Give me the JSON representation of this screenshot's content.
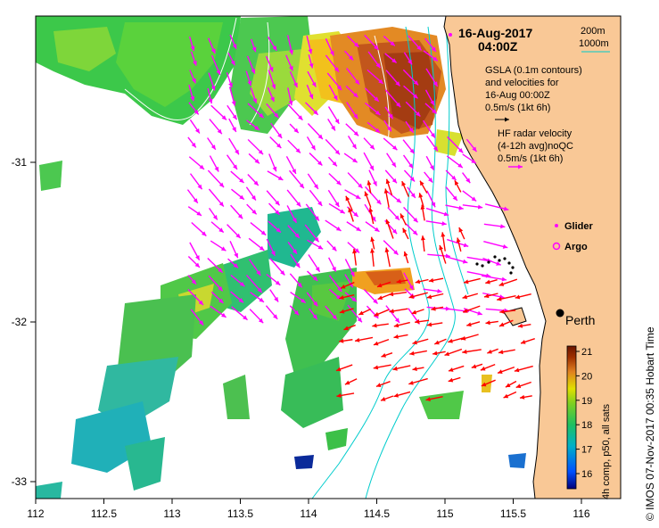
{
  "header": {
    "date": "16-Aug-2017",
    "time": "04:00Z"
  },
  "contours": {
    "label1": "200m",
    "label2": "1000m"
  },
  "gsla": {
    "line1": "GSLA (0.1m contours)",
    "line2": "and velocities for",
    "line3": "16-Aug 00:00Z",
    "scale": "0.5m/s (1kt 6h)"
  },
  "hf": {
    "line1": "HF radar velocity",
    "line2": "(4-12h avg)noQC",
    "scale": "0.5m/s (1kt 6h)"
  },
  "legend": {
    "glider": "Glider",
    "argo": "Argo"
  },
  "place": {
    "name": "Perth"
  },
  "axes": {
    "x_ticks": [
      "112",
      "112.5",
      "113",
      "113.5",
      "114",
      "114.5",
      "115",
      "115.5",
      "116"
    ],
    "y_ticks": [
      "-31",
      "-32",
      "-33"
    ]
  },
  "colorbar": {
    "label": "4h comp, p50, all sats",
    "ticks": [
      "21",
      "20",
      "19",
      "18",
      "17",
      "16"
    ]
  },
  "credit": "© IMOS 07-Nov-2017 00:35 Hobart Time",
  "colors": {
    "land": "#f9c896",
    "coast": "#000000",
    "hf_vector": "#ff00ff",
    "gsla_vector": "#ff0000",
    "contour": "#00cccc",
    "colorbar_stops": [
      "#00007a",
      "#0050ff",
      "#00b0c8",
      "#20c060",
      "#80d020",
      "#e0e000",
      "#e08020",
      "#a03000",
      "#6a1500"
    ]
  }
}
